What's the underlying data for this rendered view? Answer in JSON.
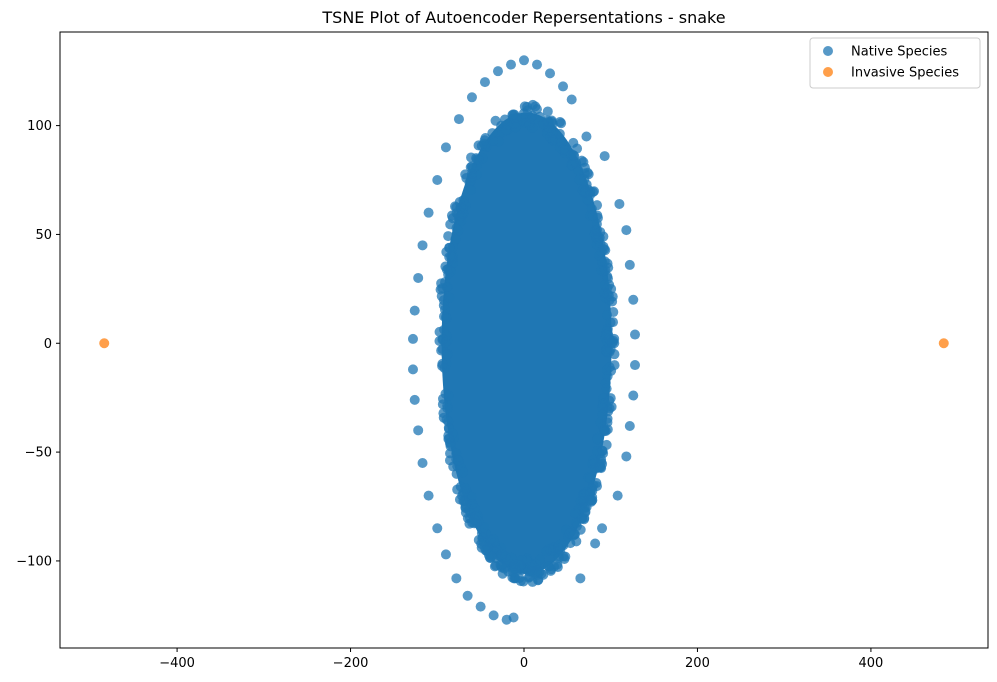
{
  "chart_data": {
    "type": "scatter",
    "title": "TSNE Plot of Autoencoder Repersentations - snake",
    "xlabel": "",
    "ylabel": "",
    "xlim": [
      -535,
      535
    ],
    "ylim": [
      -140,
      143
    ],
    "xticks": [
      -400,
      -200,
      0,
      200,
      400
    ],
    "yticks": [
      -100,
      -50,
      0,
      50,
      100
    ],
    "grid": false,
    "legend_position": "top-right",
    "series": [
      {
        "name": "Native Species",
        "color": "#1f77b4",
        "alpha": 0.75,
        "shape": "dense elliptical cloud",
        "center": [
          3,
          0
        ],
        "core_semi_axes": [
          98,
          106
        ],
        "halo_semi_axes": [
          130,
          132
        ],
        "points": [
          [
            -128,
            2
          ],
          [
            -126,
            15
          ],
          [
            -122,
            30
          ],
          [
            -117,
            45
          ],
          [
            -110,
            60
          ],
          [
            -100,
            75
          ],
          [
            -90,
            90
          ],
          [
            -75,
            103
          ],
          [
            -60,
            113
          ],
          [
            -45,
            120
          ],
          [
            -30,
            125
          ],
          [
            -15,
            128
          ],
          [
            0,
            130
          ],
          [
            15,
            128
          ],
          [
            30,
            124
          ],
          [
            45,
            118
          ],
          [
            55,
            112
          ],
          [
            72,
            95
          ],
          [
            93,
            86
          ],
          [
            110,
            64
          ],
          [
            118,
            52
          ],
          [
            122,
            36
          ],
          [
            126,
            20
          ],
          [
            128,
            4
          ],
          [
            128,
            -10
          ],
          [
            126,
            -24
          ],
          [
            122,
            -38
          ],
          [
            118,
            -52
          ],
          [
            108,
            -70
          ],
          [
            90,
            -85
          ],
          [
            65,
            -108
          ],
          [
            82,
            -92
          ],
          [
            -128,
            -12
          ],
          [
            -126,
            -26
          ],
          [
            -122,
            -40
          ],
          [
            -117,
            -55
          ],
          [
            -110,
            -70
          ],
          [
            -100,
            -85
          ],
          [
            -90,
            -97
          ],
          [
            -78,
            -108
          ],
          [
            -65,
            -116
          ],
          [
            -50,
            -121
          ],
          [
            -35,
            -125
          ],
          [
            -20,
            -127
          ],
          [
            -12,
            -126
          ]
        ]
      },
      {
        "name": "Invasive Species",
        "color": "#ff7f0e",
        "alpha": 0.75,
        "points": [
          [
            -484,
            0
          ],
          [
            484,
            0
          ]
        ]
      }
    ]
  }
}
